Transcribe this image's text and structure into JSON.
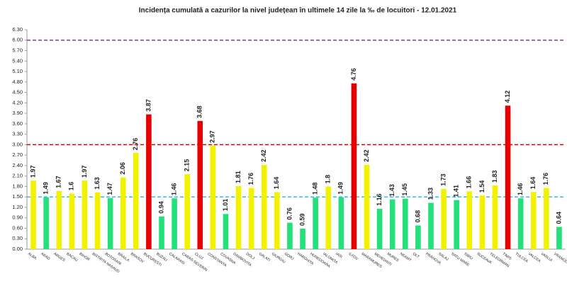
{
  "chart_data": {
    "type": "bar",
    "title": "Incidența cumulată a cazurilor la nivel județean în ultimele 14 zile la ‰ de locuitori - 12.01.2021",
    "categories": [
      "ALBA",
      "ARAD",
      "ARGES",
      "BACAU",
      "BIHOR",
      "BISTRITA NASAUD",
      "BOTOSANI",
      "BRAILA",
      "BRASOV",
      "BUCURESTI",
      "BUZAU",
      "CALARASI",
      "CARAS-SEVERIN",
      "CLUJ",
      "CONSTANTA",
      "COVASNA",
      "DAMBOVITA",
      "DOLJ",
      "GALATI",
      "GIURGIU",
      "GORJ",
      "HARGHITA",
      "HUNEDOARA",
      "IALOMITA",
      "IASI",
      "ILFOV",
      "MARAMURES",
      "MEHEDINTI",
      "MURES",
      "NEAMT",
      "OLT",
      "PRAHOVA",
      "SALAJ",
      "SATU MARE",
      "SIBIU",
      "SUCEAVA",
      "TELEORMAN",
      "TIMIS",
      "TULCEA",
      "VALCEA",
      "VASLUI",
      "VRANCEA"
    ],
    "values": [
      1.97,
      1.49,
      1.67,
      1.6,
      1.97,
      1.63,
      1.47,
      2.06,
      2.76,
      3.87,
      0.94,
      1.46,
      2.15,
      3.68,
      2.97,
      1.01,
      1.81,
      1.76,
      2.42,
      1.64,
      0.76,
      0.59,
      1.48,
      1.8,
      1.49,
      4.76,
      2.42,
      1.16,
      1.43,
      1.45,
      0.68,
      1.33,
      1.73,
      1.41,
      1.66,
      1.54,
      1.83,
      4.12,
      1.46,
      1.64,
      1.76,
      0.64
    ],
    "colors": [
      "#f2f200",
      "#22e07a",
      "#f2f200",
      "#f2f200",
      "#f2f200",
      "#f2f200",
      "#22e07a",
      "#f2f200",
      "#f2f200",
      "#e60000",
      "#22e07a",
      "#22e07a",
      "#f2f200",
      "#e60000",
      "#f2f200",
      "#22e07a",
      "#f2f200",
      "#f2f200",
      "#f2f200",
      "#f2f200",
      "#22e07a",
      "#22e07a",
      "#22e07a",
      "#f2f200",
      "#22e07a",
      "#e60000",
      "#f2f200",
      "#22e07a",
      "#22e07a",
      "#22e07a",
      "#22e07a",
      "#22e07a",
      "#f2f200",
      "#22e07a",
      "#f2f200",
      "#f2f200",
      "#f2f200",
      "#e60000",
      "#22e07a",
      "#f2f200",
      "#f2f200",
      "#22e07a"
    ],
    "ylim": [
      0,
      6.3
    ],
    "yticks": [
      {
        "value": 0,
        "label": "0.00"
      },
      {
        "value": 0.3,
        "label": "0.30"
      },
      {
        "value": 0.6,
        "label": "0.60"
      },
      {
        "value": 0.9,
        "label": "0.90"
      },
      {
        "value": 1.2,
        "label": "1.20"
      },
      {
        "value": 1.5,
        "label": "1.50"
      },
      {
        "value": 1.8,
        "label": "1.80"
      },
      {
        "value": 2.1,
        "label": "2.10"
      },
      {
        "value": 2.4,
        "label": "2.40"
      },
      {
        "value": 2.7,
        "label": "2.70"
      },
      {
        "value": 3,
        "label": "3.00"
      },
      {
        "value": 3.3,
        "label": "3.30"
      },
      {
        "value": 3.6,
        "label": "3.60"
      },
      {
        "value": 3.9,
        "label": "3.90"
      },
      {
        "value": 4.2,
        "label": "4.20"
      },
      {
        "value": 4.5,
        "label": "4.50"
      },
      {
        "value": 4.8,
        "label": "4.80"
      },
      {
        "value": 5.1,
        "label": "5.10"
      },
      {
        "value": 5.4,
        "label": "5.40"
      },
      {
        "value": 5.7,
        "label": "5.70"
      },
      {
        "value": 6,
        "label": "6.00"
      },
      {
        "value": 6.3,
        "label": "6.30"
      }
    ],
    "reference_lines": [
      {
        "value": 6,
        "color": "#8b3a8b"
      },
      {
        "value": 3,
        "color": "#e00000"
      },
      {
        "value": 1.5,
        "color": "#33bbee"
      }
    ],
    "grid": false
  }
}
